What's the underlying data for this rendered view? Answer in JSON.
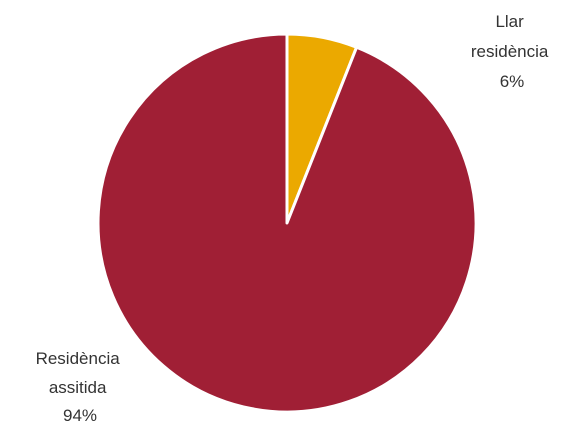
{
  "chart_data": {
    "type": "pie",
    "title": "",
    "categories": [
      "Llar residència",
      "Residència assitida"
    ],
    "label_lines": [
      [
        "Llar",
        "residència"
      ],
      [
        "Residència",
        "assitida"
      ]
    ],
    "values": [
      6,
      94
    ],
    "value_labels": [
      "6%",
      "94%"
    ],
    "colors": [
      "#EBA900",
      "#A01F35"
    ],
    "start_angle_deg": 0,
    "direction": "clockwise",
    "legend": "none"
  }
}
